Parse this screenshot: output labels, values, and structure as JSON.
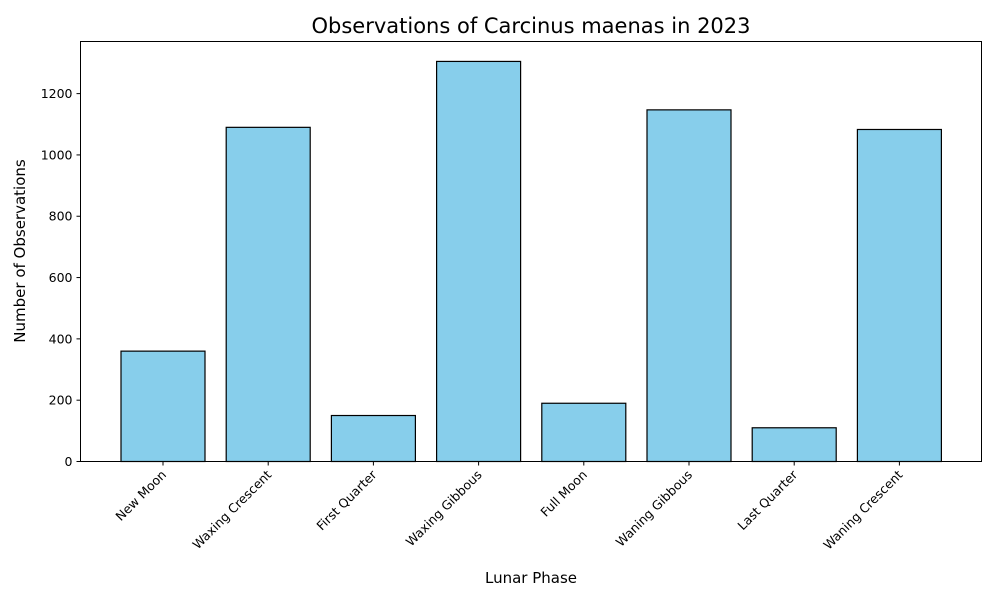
{
  "chart_data": {
    "type": "bar",
    "title": "Observations of Carcinus maenas in 2023",
    "xlabel": "Lunar Phase",
    "ylabel": "Number of Observations",
    "categories": [
      "New Moon",
      "Waxing Crescent",
      "First Quarter",
      "Waxing Gibbous",
      "Full Moon",
      "Waning Gibbous",
      "Last Quarter",
      "Waning Crescent"
    ],
    "values": [
      360,
      1090,
      150,
      1305,
      190,
      1147,
      110,
      1083
    ],
    "ylim": [
      0,
      1370
    ],
    "yticks": [
      0,
      200,
      400,
      600,
      800,
      1000,
      1200
    ],
    "bar_color": "#87ceeb",
    "bar_edge_color": "#000000",
    "grid": false,
    "legend": "none"
  }
}
